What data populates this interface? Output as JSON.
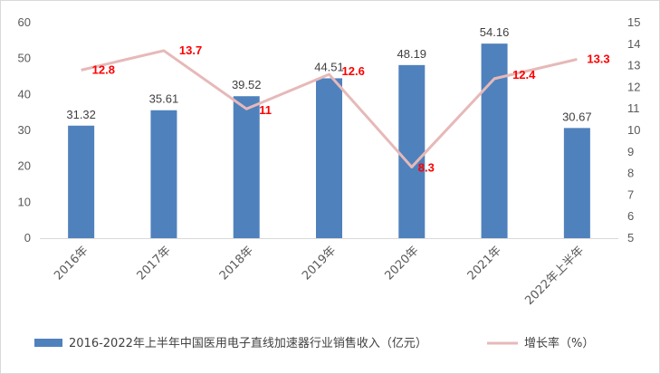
{
  "chart_data": {
    "type": "bar",
    "categories": [
      "2016年",
      "2017年",
      "2018年",
      "2019年",
      "2020年",
      "2021年",
      "2022年上半年"
    ],
    "series": [
      {
        "name": "2016-2022年上半年中国医用电子直线加速器行业销售收入（亿元）",
        "type": "bar",
        "axis": "left",
        "color": "#4f81bd",
        "values": [
          31.32,
          35.61,
          39.52,
          44.51,
          48.19,
          54.16,
          30.67
        ],
        "labels": [
          "31.32",
          "35.61",
          "39.52",
          "44.51",
          "48.19",
          "54.16",
          "30.67"
        ]
      },
      {
        "name": "增长率（%）",
        "type": "line",
        "axis": "right",
        "color": "#e6b9b8",
        "values": [
          12.8,
          13.7,
          11,
          12.6,
          8.3,
          12.4,
          13.3
        ],
        "labels": [
          "12.8",
          "13.7",
          "11",
          "12.6",
          "8.3",
          "12.4",
          "13.3"
        ],
        "label_color": "#ff0000"
      }
    ],
    "y_left": {
      "min": 0,
      "max": 60,
      "ticks": [
        "0",
        "10",
        "20",
        "30",
        "40",
        "50",
        "60"
      ]
    },
    "y_right": {
      "min": 5,
      "max": 15,
      "ticks": [
        "5",
        "6",
        "7",
        "8",
        "9",
        "10",
        "11",
        "12",
        "13",
        "14",
        "15"
      ]
    },
    "grid": false,
    "legend": "bottom"
  }
}
